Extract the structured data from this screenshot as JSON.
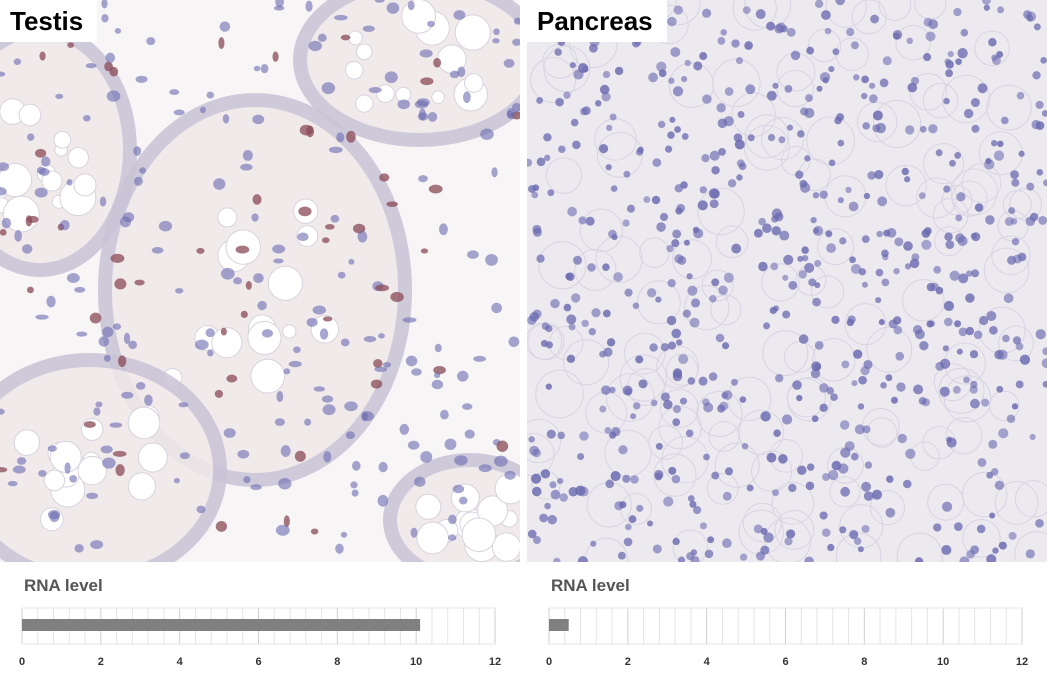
{
  "colors": {
    "bar": "#808080",
    "grid": "#e4e4e4",
    "testis_background": "#f7f5f6",
    "pancreas_background": "#ece9ef",
    "nucleus": "#6a6ab0",
    "brown_stain": "#8a4a55"
  },
  "chart_data": [
    {
      "type": "bar",
      "title": "Testis",
      "xlabel": "RNA level",
      "value": 10.1,
      "xlim": [
        0,
        12
      ],
      "ticks": [
        "0",
        "2",
        "4",
        "6",
        "8",
        "10",
        "12"
      ],
      "grid": true
    },
    {
      "type": "bar",
      "title": "Pancreas",
      "xlabel": "RNA level",
      "value": 0.5,
      "xlim": [
        0,
        12
      ],
      "ticks": [
        "0",
        "2",
        "4",
        "6",
        "8",
        "10",
        "12"
      ],
      "grid": true
    }
  ]
}
